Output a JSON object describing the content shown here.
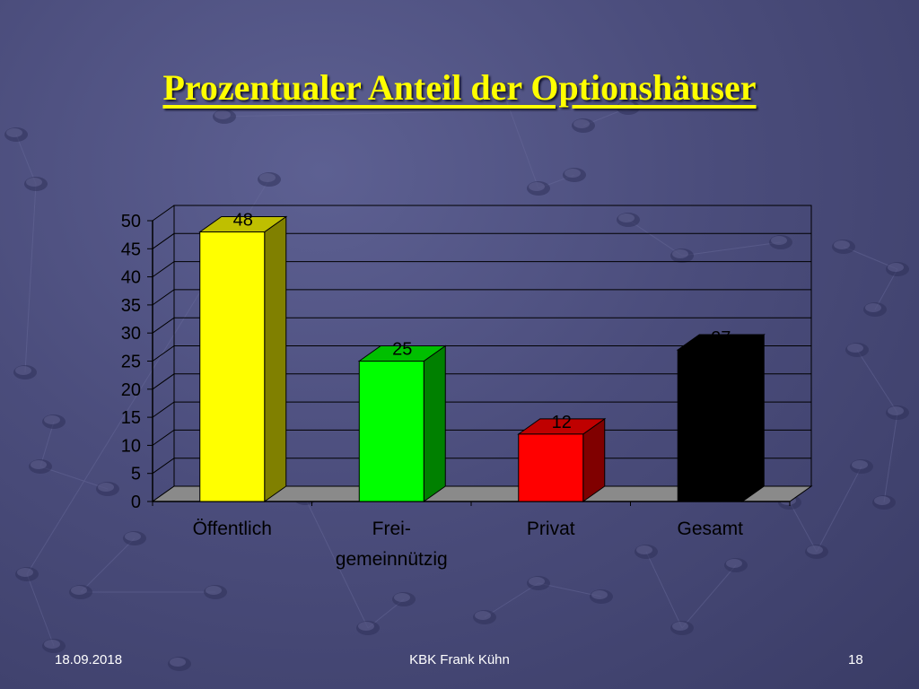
{
  "slide": {
    "title": "Prozentualer Anteil der Optionshäuser",
    "footer_date": "18.09.2018",
    "footer_author": "KBK Frank Kühn",
    "page_number": "18"
  },
  "chart_data": {
    "type": "bar",
    "style": "3d",
    "categories": [
      "Öffentlich",
      "Frei-\ngemeinnützig",
      "Privat",
      "Gesamt"
    ],
    "values": [
      48,
      25,
      12,
      27
    ],
    "data_labels": [
      "48",
      "25",
      "12",
      "27"
    ],
    "colors": [
      "#ffff00",
      "#00ff00",
      "#ff0000",
      "#000000"
    ],
    "ylim": [
      0,
      50
    ],
    "yticks": [
      0,
      5,
      10,
      15,
      20,
      25,
      30,
      35,
      40,
      45,
      50
    ],
    "grid": true,
    "legend": "none",
    "title": "",
    "xlabel": "",
    "ylabel": ""
  }
}
